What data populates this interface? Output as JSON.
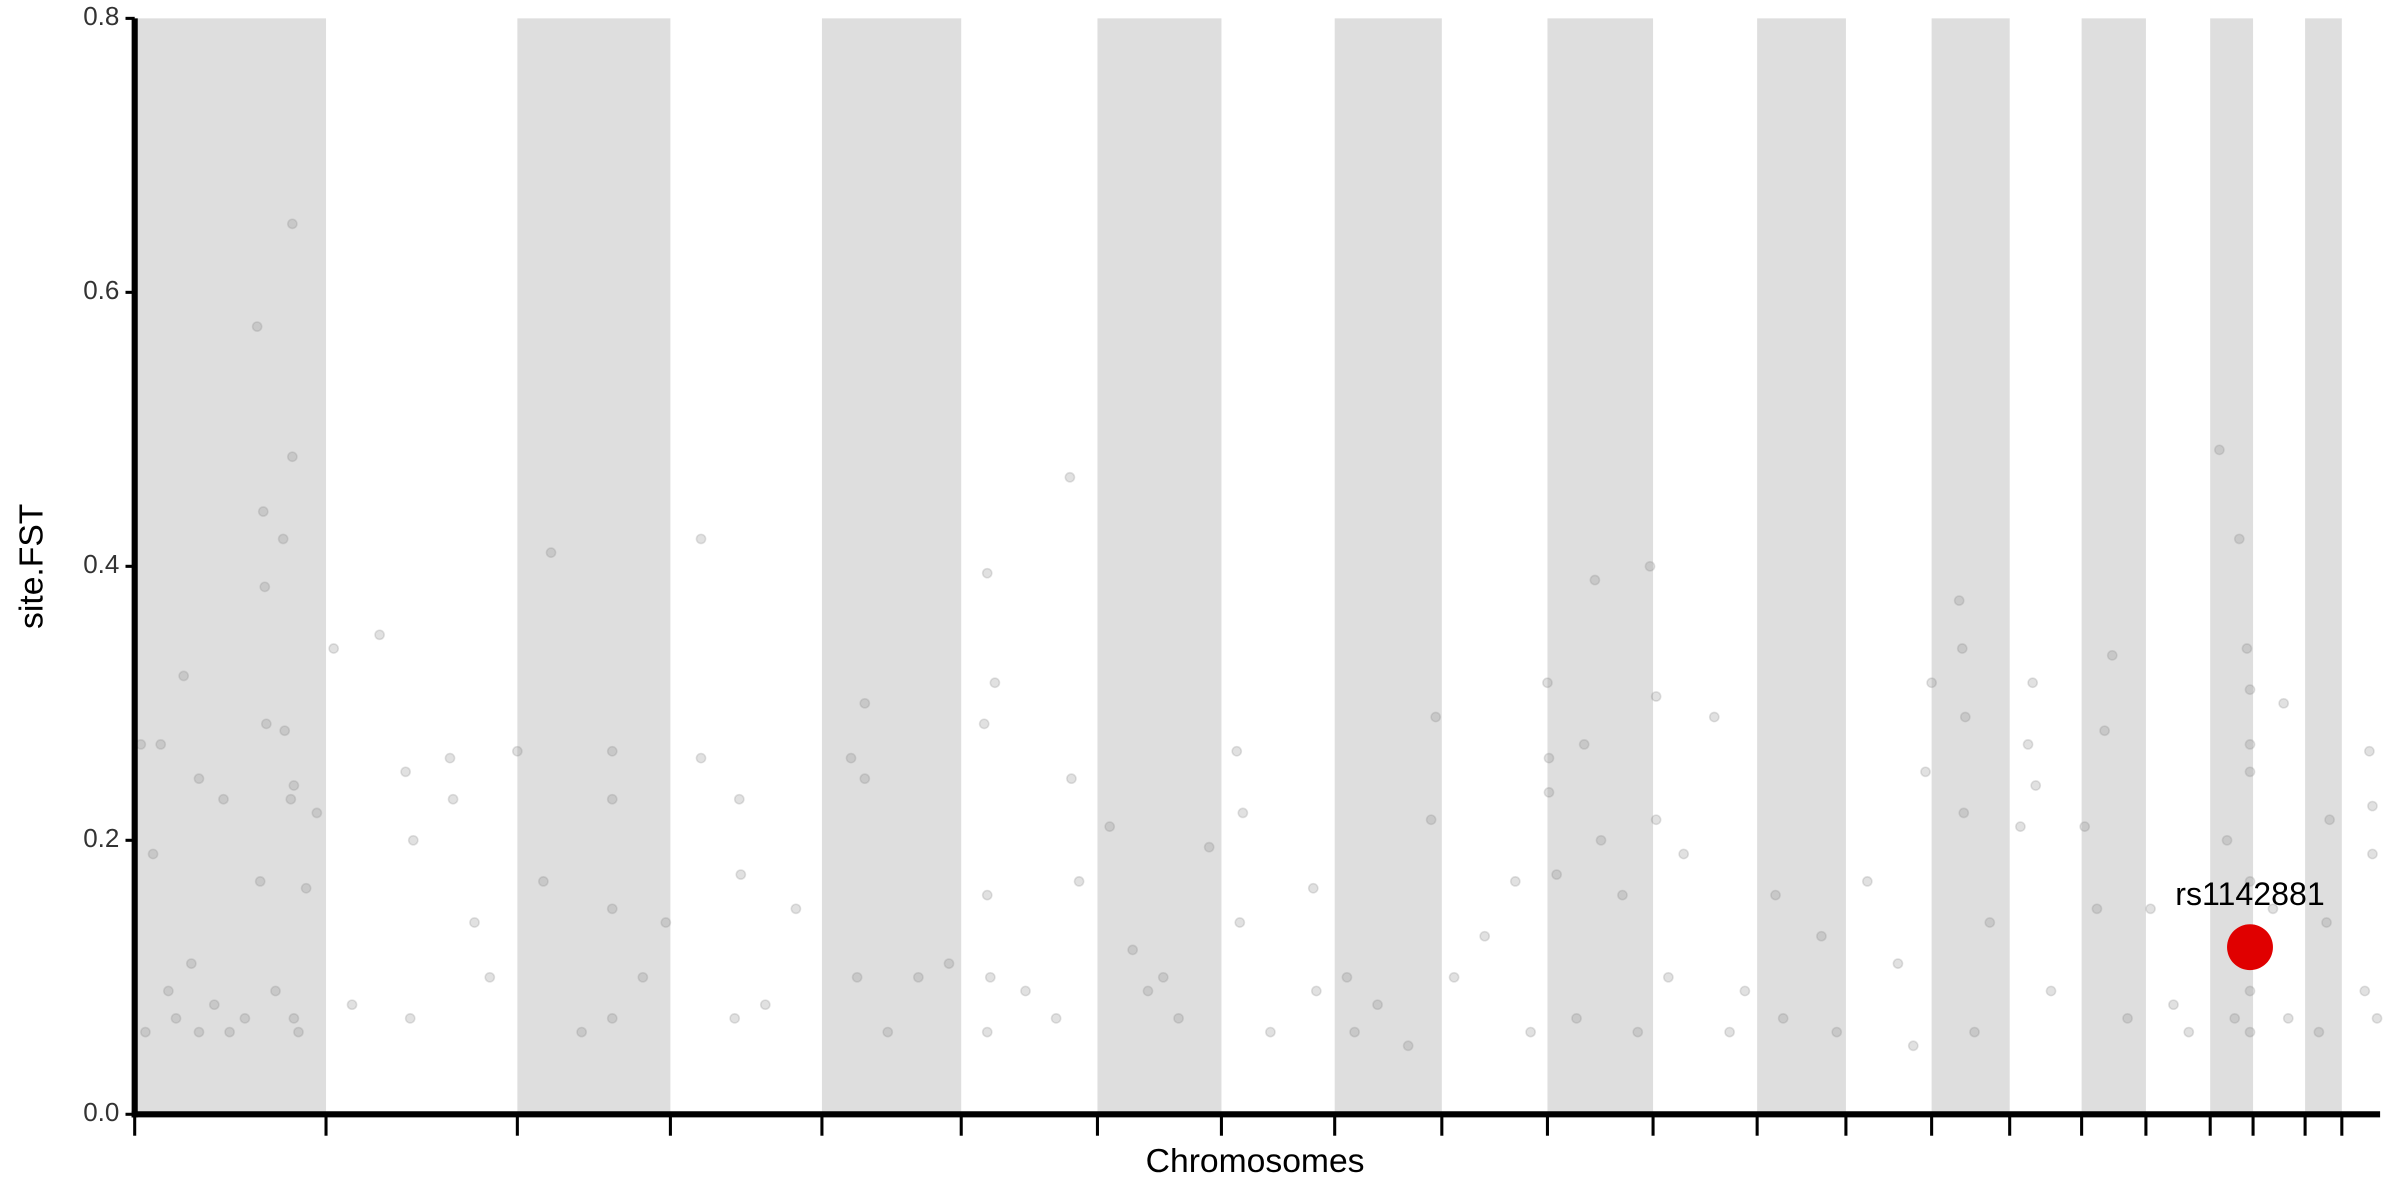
{
  "chart_data": {
    "type": "scatter",
    "xlabel": "Chromosomes",
    "ylabel": "site.FST",
    "xlim": [
      0,
      1467
    ],
    "ylim": [
      0,
      0.8
    ],
    "xticks": [
      0,
      125,
      250,
      350,
      449,
      540,
      629,
      710,
      784,
      854,
      923,
      992,
      1060,
      1118,
      1174,
      1225,
      1272,
      1314,
      1356,
      1384,
      1418,
      1442
    ],
    "yticks": [
      {
        "value": 0,
        "label": "0.0"
      },
      0.2,
      0.4,
      0.6,
      0.8
    ],
    "alternate_bands": true,
    "band_color": "#dedede",
    "color": "#888888",
    "opacity": 0.25,
    "x": [
      4,
      7,
      12,
      17,
      22,
      32,
      37,
      42,
      52,
      58,
      80,
      82,
      84,
      85,
      86,
      97,
      98,
      102,
      103,
      103,
      104,
      104,
      107,
      112,
      119,
      62,
      72,
      92,
      42,
      27,
      130,
      160,
      177,
      180,
      182,
      206,
      208,
      222,
      232,
      142,
      250,
      272,
      267,
      312,
      312,
      312,
      312,
      292,
      332,
      347,
      370,
      370,
      395,
      396,
      392,
      412,
      432,
      468,
      477,
      477,
      472,
      492,
      512,
      532,
      557,
      562,
      555,
      557,
      557,
      559,
      582,
      611,
      612,
      617,
      602,
      637,
      672,
      702,
      682,
      662,
      652,
      720,
      724,
      722,
      742,
      770,
      772,
      792,
      797,
      850,
      847,
      812,
      832,
      862,
      882,
      902,
      912,
      923,
      924,
      924,
      929,
      954,
      947,
      958,
      990,
      994,
      994,
      972,
      982,
      942,
      1032,
      1012,
      1002,
      1042,
      1072,
      1052,
      1077,
      1102,
      1112,
      1132,
      1152,
      1162,
      1174,
      1170,
      1192,
      1194,
      1196,
      1195,
      1212,
      1202,
      1240,
      1237,
      1232,
      1242,
      1252,
      1292,
      1287,
      1282,
      1302,
      1274,
      1317,
      1332,
      1342,
      1362,
      1375,
      1380,
      1382,
      1382,
      1382,
      1367,
      1382,
      1382,
      1382,
      1372,
      1404,
      1397,
      1407,
      1434,
      1432,
      1427,
      1460,
      1462,
      1462,
      1457,
      1465
    ],
    "values": [
      0.27,
      0.06,
      0.19,
      0.27,
      0.09,
      0.32,
      0.11,
      0.245,
      0.08,
      0.23,
      0.575,
      0.17,
      0.44,
      0.385,
      0.285,
      0.42,
      0.28,
      0.23,
      0.65,
      0.48,
      0.24,
      0.07,
      0.06,
      0.165,
      0.22,
      0.06,
      0.07,
      0.09,
      0.06,
      0.07,
      0.34,
      0.35,
      0.25,
      0.07,
      0.2,
      0.26,
      0.23,
      0.14,
      0.1,
      0.08,
      0.265,
      0.41,
      0.17,
      0.265,
      0.23,
      0.15,
      0.07,
      0.06,
      0.1,
      0.14,
      0.42,
      0.26,
      0.23,
      0.175,
      0.07,
      0.08,
      0.15,
      0.26,
      0.3,
      0.245,
      0.1,
      0.06,
      0.1,
      0.11,
      0.395,
      0.315,
      0.285,
      0.16,
      0.06,
      0.1,
      0.09,
      0.465,
      0.245,
      0.17,
      0.07,
      0.21,
      0.1,
      0.195,
      0.07,
      0.09,
      0.12,
      0.265,
      0.22,
      0.14,
      0.06,
      0.165,
      0.09,
      0.1,
      0.06,
      0.29,
      0.215,
      0.08,
      0.05,
      0.1,
      0.13,
      0.17,
      0.06,
      0.315,
      0.26,
      0.235,
      0.175,
      0.39,
      0.27,
      0.2,
      0.4,
      0.305,
      0.215,
      0.16,
      0.06,
      0.07,
      0.29,
      0.19,
      0.1,
      0.06,
      0.16,
      0.09,
      0.07,
      0.13,
      0.06,
      0.17,
      0.11,
      0.05,
      0.315,
      0.25,
      0.375,
      0.34,
      0.29,
      0.22,
      0.14,
      0.06,
      0.315,
      0.27,
      0.21,
      0.24,
      0.09,
      0.335,
      0.28,
      0.15,
      0.07,
      0.21,
      0.15,
      0.08,
      0.06,
      0.485,
      0.42,
      0.34,
      0.31,
      0.27,
      0.25,
      0.2,
      0.17,
      0.09,
      0.06,
      0.07,
      0.3,
      0.15,
      0.07,
      0.215,
      0.14,
      0.06,
      0.265,
      0.225,
      0.19,
      0.09,
      0.07
    ],
    "highlight": {
      "label": "rs1142881",
      "x": 1382,
      "y": 0.122,
      "color": "#e00000"
    }
  }
}
